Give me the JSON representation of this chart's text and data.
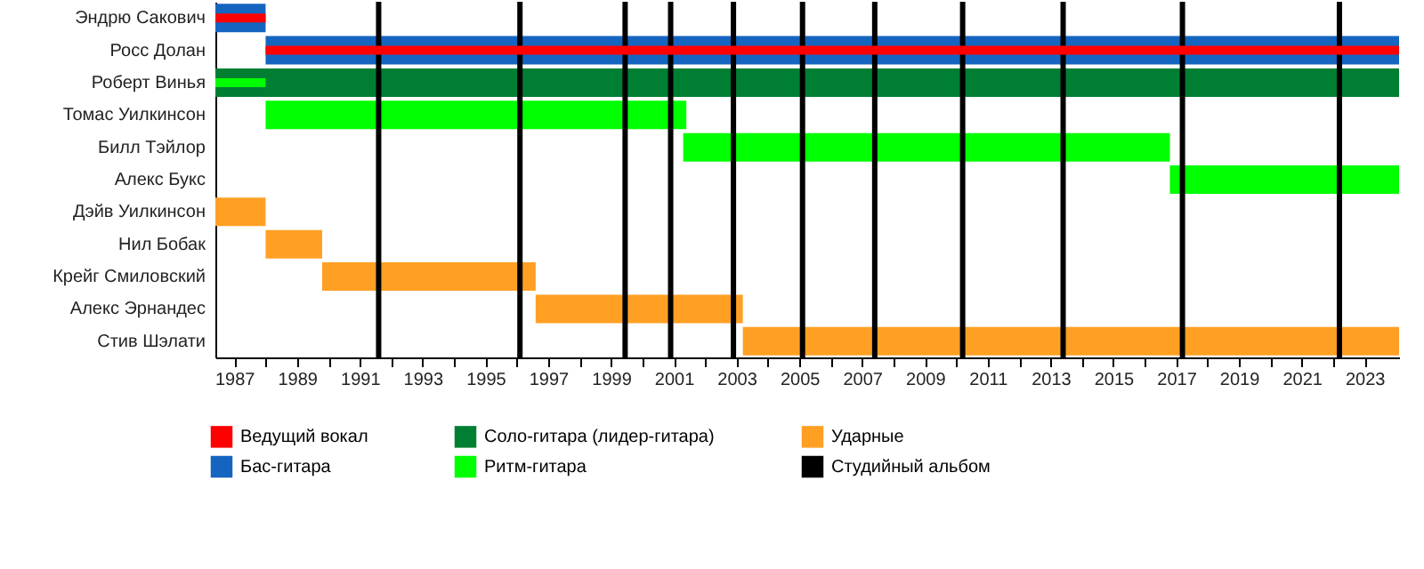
{
  "chart_data": {
    "type": "bar",
    "orientation": "horizontal",
    "categories": [
      "Эндрю Сакович",
      "Росс Долан",
      "Роберт Винья",
      "Томас Уилкинсон",
      "Билл Тэйлор",
      "Алекс Букс",
      "Дэйв Уилкинсон",
      "Нил Бобак",
      "Крейг Смиловский",
      "Алекс Эрнандес",
      "Стив Шэлати"
    ],
    "series": [
      {
        "name": "Ведущий вокал",
        "color": "#ff0000",
        "base": [
          1986.4,
          1988,
          null,
          null,
          null,
          null,
          null,
          null,
          null,
          null,
          null
        ],
        "values": [
          1.6,
          36.1,
          null,
          null,
          null,
          null,
          null,
          null,
          null,
          null,
          null
        ]
      },
      {
        "name": "Бас-гитара",
        "color": "#1565c0",
        "base": [
          1986.4,
          1988,
          null,
          null,
          null,
          null,
          null,
          null,
          null,
          null,
          null
        ],
        "values": [
          1.6,
          36.1,
          null,
          null,
          null,
          null,
          null,
          null,
          null,
          null,
          null
        ]
      },
      {
        "name": "Соло-гитара (лидер-гитара)",
        "color": "#007f33",
        "base": [
          null,
          null,
          1986.4,
          null,
          null,
          null,
          null,
          null,
          null,
          null,
          null
        ],
        "values": [
          null,
          null,
          37.7,
          null,
          null,
          null,
          null,
          null,
          null,
          null,
          null
        ]
      },
      {
        "name": "Ритм-гитара",
        "color": "#00ff00",
        "base": [
          null,
          null,
          1986.4,
          1988,
          2001.3,
          2016.8,
          null,
          null,
          null,
          null,
          null
        ],
        "values": [
          null,
          null,
          1.6,
          13.4,
          15.5,
          7.3,
          null,
          null,
          null,
          null,
          null
        ]
      },
      {
        "name": "Ударные",
        "color": "#ffa024",
        "base": [
          null,
          null,
          null,
          null,
          null,
          null,
          1986.4,
          1988,
          1989.8,
          1996.6,
          2003.2
        ],
        "values": [
          null,
          null,
          null,
          null,
          null,
          null,
          1.6,
          1.8,
          6.8,
          6.6,
          20.9
        ]
      }
    ],
    "xlim": [
      1986.4,
      2024.1
    ],
    "xticks": [
      1987,
      {
        "value": 1988,
        "label": null
      },
      1989,
      {
        "value": 1990,
        "label": null
      },
      1991,
      {
        "value": 1992,
        "label": null
      },
      1993,
      {
        "value": 1994,
        "label": null
      },
      1995,
      {
        "value": 1996,
        "label": null
      },
      1997,
      {
        "value": 1998,
        "label": null
      },
      1999,
      {
        "value": 2000,
        "label": null
      },
      2001,
      {
        "value": 2002,
        "label": null
      },
      2003,
      {
        "value": 2004,
        "label": null
      },
      2005,
      {
        "value": 2006,
        "label": null
      },
      2007,
      {
        "value": 2008,
        "label": null
      },
      2009,
      {
        "value": 2010,
        "label": null
      },
      2011,
      {
        "value": 2012,
        "label": null
      },
      2013,
      {
        "value": 2014,
        "label": null
      },
      2015,
      {
        "value": 2016,
        "label": null
      },
      2017,
      {
        "value": 2018,
        "label": null
      },
      2019,
      {
        "value": 2020,
        "label": null
      },
      2021,
      {
        "value": 2022,
        "label": null
      },
      2023
    ],
    "ref_lines": [
      {
        "axis": "x",
        "value": 1991.6,
        "label": "Студийный альбом",
        "color": "#000000"
      },
      {
        "axis": "x",
        "value": 1996.1,
        "color": "#000000"
      },
      {
        "axis": "x",
        "value": 1999.45,
        "color": "#000000"
      },
      {
        "axis": "x",
        "value": 2000.9,
        "color": "#000000"
      },
      {
        "axis": "x",
        "value": 2002.9,
        "color": "#000000"
      },
      {
        "axis": "x",
        "value": 2005.1,
        "color": "#000000"
      },
      {
        "axis": "x",
        "value": 2007.4,
        "color": "#000000"
      },
      {
        "axis": "x",
        "value": 2010.2,
        "color": "#000000"
      },
      {
        "axis": "x",
        "value": 2013.4,
        "color": "#000000"
      },
      {
        "axis": "x",
        "value": 2017.2,
        "color": "#000000"
      },
      {
        "axis": "x",
        "value": 2022.2,
        "color": "#000000"
      }
    ],
    "legend": "bottom"
  }
}
